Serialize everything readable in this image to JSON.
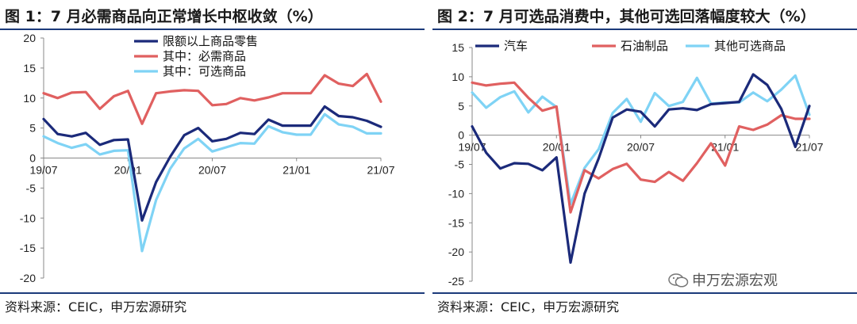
{
  "watermark": "申万宏源宏观",
  "panels": [
    {
      "title": "图 1：7 月必需商品向正常增长中枢收敛（%）",
      "source": "资料来源：CEIC，申万宏源研究",
      "chart_data": {
        "type": "line",
        "ylim": [
          -20,
          20
        ],
        "yticks": [
          20,
          15,
          10,
          5,
          0,
          -5,
          -10,
          -15,
          -20
        ],
        "xticks": [
          "19/07",
          "20/01",
          "20/07",
          "21/01",
          "21/07"
        ],
        "xtick_index": [
          0,
          6,
          12,
          18,
          24
        ],
        "legend": "top-right",
        "series": [
          {
            "name": "限额以上商品零售",
            "color": "#1b2a7a",
            "values": [
              6.5,
              4.0,
              3.6,
              4.2,
              2.2,
              3.0,
              3.1,
              -10.4,
              -4.0,
              0.2,
              3.8,
              5.0,
              2.8,
              3.2,
              4.2,
              4.0,
              6.4,
              5.4,
              5.4,
              5.4,
              8.6,
              7.0,
              6.8,
              6.2,
              5.2
            ]
          },
          {
            "name": "其中：必需商品",
            "color": "#e06060",
            "values": [
              10.8,
              10.0,
              10.9,
              11.0,
              8.2,
              10.3,
              11.2,
              5.7,
              10.8,
              11.1,
              11.3,
              11.2,
              8.8,
              9.0,
              10.0,
              9.6,
              10.1,
              10.8,
              10.8,
              10.8,
              13.8,
              12.4,
              12.0,
              14.0,
              9.4
            ]
          },
          {
            "name": "其中：可选商品",
            "color": "#7fd3f5",
            "values": [
              3.6,
              2.5,
              1.7,
              2.3,
              0.6,
              1.2,
              1.3,
              -15.5,
              -7.0,
              -1.8,
              1.6,
              3.2,
              1.1,
              1.8,
              2.5,
              2.4,
              5.3,
              4.3,
              3.9,
              3.9,
              7.3,
              5.6,
              5.2,
              4.1,
              4.1
            ]
          }
        ]
      }
    },
    {
      "title": "图 2：7 月可选品消费中，其他可选回落幅度较大（%）",
      "source": "资料来源：CEIC，申万宏源研究",
      "chart_data": {
        "type": "line",
        "ylim": [
          -25,
          15
        ],
        "yticks": [
          15,
          10,
          5,
          0,
          -5,
          -10,
          -15,
          -20,
          -25
        ],
        "xticks": [
          "19/07",
          "20/01",
          "20/07",
          "21/01",
          "21/07"
        ],
        "xtick_index": [
          0,
          6,
          12,
          18,
          24
        ],
        "legend": "top",
        "series": [
          {
            "name": "汽车",
            "color": "#1b2a7a",
            "values": [
              1.5,
              -3.0,
              -5.7,
              -4.8,
              -4.9,
              -6.0,
              -3.8,
              -21.8,
              -10.0,
              -4.0,
              3.0,
              4.4,
              4.0,
              1.5,
              4.4,
              4.6,
              4.3,
              5.3,
              5.5,
              5.7,
              10.4,
              8.6,
              4.5,
              -2.0,
              5.0
            ]
          },
          {
            "name": "石油制品",
            "color": "#e06060",
            "values": [
              9.0,
              8.5,
              8.8,
              9.0,
              6.4,
              4.2,
              4.9,
              -13.2,
              -6.0,
              -7.4,
              -5.8,
              -4.9,
              -7.6,
              -8.0,
              -6.3,
              -7.8,
              -4.8,
              -1.4,
              -5.2,
              1.5,
              0.9,
              1.8,
              3.4,
              2.8,
              2.8
            ]
          },
          {
            "name": "其他可选商品",
            "color": "#7fd3f5",
            "values": [
              7.3,
              4.7,
              6.5,
              7.5,
              3.9,
              6.6,
              4.8,
              -11.8,
              -5.6,
              -2.4,
              3.8,
              6.2,
              2.3,
              7.2,
              5.0,
              5.7,
              9.8,
              5.4,
              5.6,
              5.6,
              7.3,
              5.8,
              7.8,
              10.2,
              3.5
            ]
          }
        ]
      }
    }
  ]
}
